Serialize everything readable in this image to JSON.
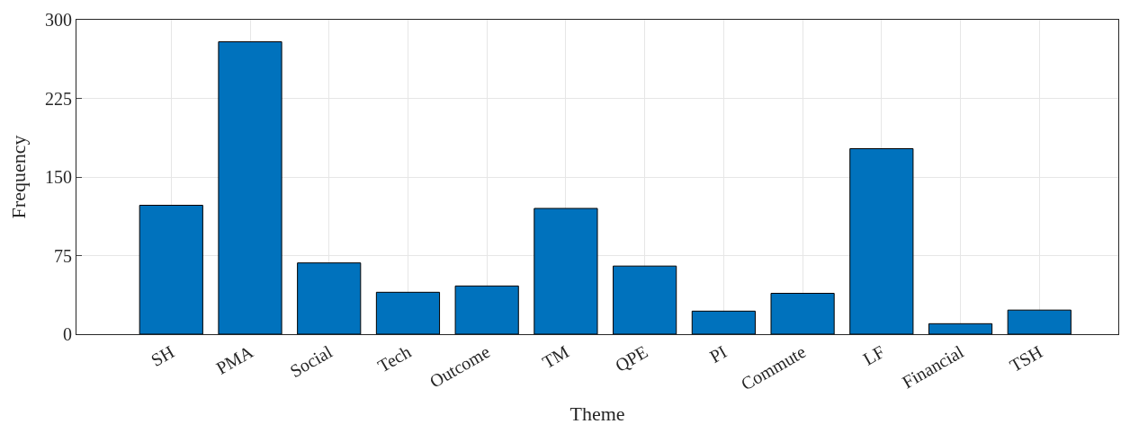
{
  "chart_data": {
    "type": "bar",
    "xlabel": "Theme",
    "ylabel": "Frequency",
    "categories": [
      "SH",
      "PMA",
      "Social",
      "Tech",
      "Outcome",
      "TM",
      "QPE",
      "PI",
      "Commute",
      "LF",
      "Financial",
      "TSH"
    ],
    "values": [
      123,
      279,
      68,
      40,
      46,
      120,
      65,
      22,
      39,
      177,
      10,
      23
    ],
    "color": "#0072bd",
    "ylim": [
      0,
      300
    ],
    "yticks": [
      0,
      75,
      150,
      225,
      300
    ],
    "grid": true
  }
}
